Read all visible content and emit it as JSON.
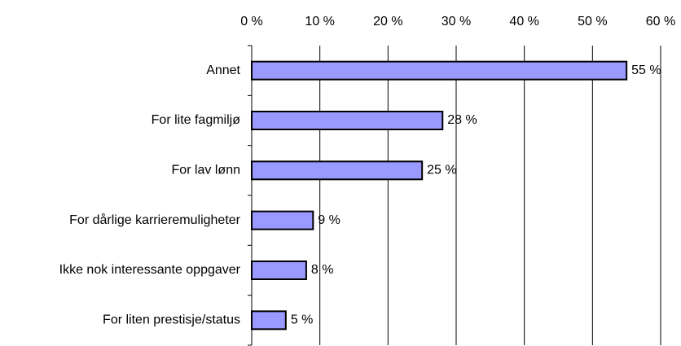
{
  "chart_data": {
    "type": "bar",
    "orientation": "horizontal",
    "categories": [
      "Annet",
      "For lite fagmiljø",
      "For lav lønn",
      "For dårlige karrieremuligheter",
      "Ikke nok interessante oppgaver",
      "For liten prestisje/status"
    ],
    "values": [
      55,
      28,
      25,
      9,
      8,
      5
    ],
    "value_labels": [
      "55 %",
      "28 %",
      "25 %",
      "9 %",
      "8 %",
      "5 %"
    ],
    "color": "#9999ff",
    "xlim": [
      0,
      60
    ],
    "xticks": [
      {
        "value": 0,
        "label": "0 %"
      },
      {
        "value": 10,
        "label": "10 %"
      },
      {
        "value": 20,
        "label": "20 %"
      },
      {
        "value": 30,
        "label": "30 %"
      },
      {
        "value": 40,
        "label": "40 %"
      },
      {
        "value": 50,
        "label": "50 %"
      },
      {
        "value": 60,
        "label": "60 %"
      }
    ],
    "grid": true
  }
}
